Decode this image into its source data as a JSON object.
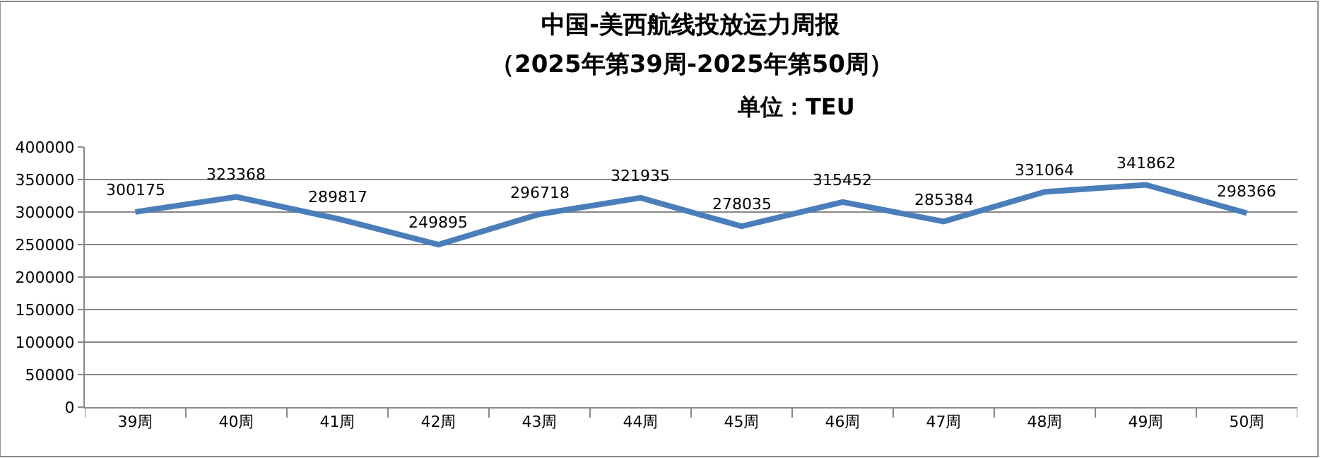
{
  "chart_data": {
    "type": "line",
    "title": "中国-美西航线投放运力周报",
    "subtitle": "（2025年第39周-2025年第50周）",
    "annotations": [
      "单位：TEU"
    ],
    "categories": [
      "39周",
      "40周",
      "41周",
      "42周",
      "43周",
      "44周",
      "45周",
      "46周",
      "47周",
      "48周",
      "49周",
      "50周"
    ],
    "series": [
      {
        "color": "#4a7ebb",
        "values": [
          300175,
          323368,
          289817,
          249895,
          296718,
          321935,
          278035,
          315452,
          285384,
          331064,
          341862,
          298366
        ]
      }
    ],
    "ylim": [
      0,
      400000
    ],
    "yticks": [
      0,
      50000,
      100000,
      150000,
      200000,
      250000,
      300000,
      350000,
      400000
    ],
    "grid": "y",
    "marker": "none",
    "line_style": "solid",
    "data_labels": true
  }
}
